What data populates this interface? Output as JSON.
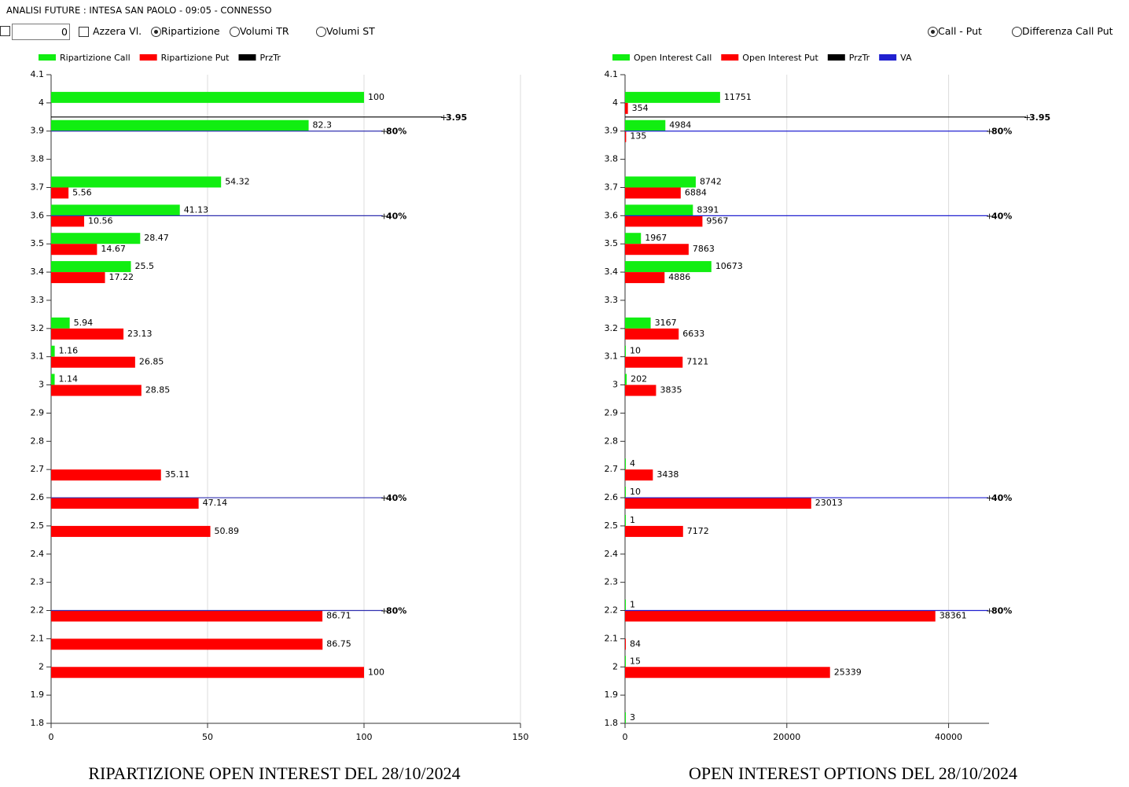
{
  "header": {
    "title": "ANALISI FUTURE : INTESA SAN PAOLO - 09:05 - CONNESSO"
  },
  "controls": {
    "input_value": "0",
    "reset": "Azzera Vl.",
    "left_options": [
      {
        "label": "Ripartizione",
        "checked": true
      },
      {
        "label": "Volumi TR",
        "checked": false
      },
      {
        "label": "Volumi ST",
        "checked": false
      }
    ],
    "right_options": [
      {
        "label": "Call - Put",
        "checked": true
      },
      {
        "label": "Differenza Call Put",
        "checked": false
      }
    ]
  },
  "chart_data": [
    {
      "type": "hbar",
      "title": "RIPARTIZIONE OPEN INTEREST DEL 28/10/2024",
      "y": [
        4,
        3.9,
        3.7,
        3.6,
        3.5,
        3.4,
        3.2,
        3.1,
        3,
        2.7,
        2.6,
        2.5,
        2.2,
        2.1,
        2
      ],
      "series": [
        {
          "name": "Ripartizione Call",
          "color": "#11ee11",
          "values": [
            100,
            82.3,
            54.32,
            41.13,
            28.47,
            25.5,
            5.94,
            1.16,
            1.14,
            null,
            null,
            null,
            null,
            null,
            null
          ]
        },
        {
          "name": "Ripartizione Put",
          "color": "#ff0000",
          "values": [
            null,
            null,
            5.56,
            10.56,
            14.67,
            17.22,
            23.13,
            26.85,
            28.85,
            35.11,
            47.14,
            50.89,
            86.71,
            86.75,
            100
          ]
        }
      ],
      "lines": [
        {
          "name": "PrzTr",
          "color": "#000000",
          "values": [
            3.95
          ]
        },
        {
          "color": "#3030b0",
          "values": [
            3.9,
            3.6,
            2.6,
            2.2
          ],
          "labels": [
            "80%",
            "40%",
            "40%",
            "80%"
          ]
        }
      ],
      "xlim": [
        0,
        150
      ],
      "xticks": [
        0,
        50,
        100,
        150
      ],
      "grid": true,
      "ylim": [
        1.8,
        4.1
      ],
      "yticks": [
        1.8,
        1.9,
        2,
        2.1,
        2.2,
        2.3,
        2.4,
        2.5,
        2.6,
        2.7,
        2.8,
        2.9,
        3,
        3.1,
        3.2,
        3.3,
        3.4,
        3.5,
        3.6,
        3.7,
        3.8,
        3.9,
        4,
        4.1
      ]
    },
    {
      "type": "hbar",
      "title": "OPEN INTEREST OPTIONS DEL 28/10/2024",
      "y": [
        4,
        3.9,
        3.7,
        3.6,
        3.5,
        3.4,
        3.2,
        3.1,
        3,
        2.7,
        2.6,
        2.5,
        2.2,
        2.1,
        2,
        1.8
      ],
      "series": [
        {
          "name": "Open Interest Call",
          "color": "#11ee11",
          "values": [
            11751,
            4984,
            8742,
            8391,
            1967,
            10673,
            3167,
            10,
            202,
            4,
            10,
            1,
            1,
            null,
            15,
            3
          ]
        },
        {
          "name": "Open Interest Put",
          "color": "#ff0000",
          "values": [
            354,
            135,
            6884,
            9567,
            7863,
            4886,
            6633,
            7121,
            3835,
            3438,
            23013,
            7172,
            38361,
            84,
            25339,
            null
          ]
        }
      ],
      "lines": [
        {
          "name": "PrzTr",
          "color": "#000000",
          "values": [
            3.95
          ]
        },
        {
          "name": "VA",
          "color": "#2020d0",
          "values": [
            3.9,
            3.6,
            2.6,
            2.2
          ],
          "labels": [
            "80%",
            "40%",
            "40%",
            "80%"
          ]
        }
      ],
      "xlim": [
        0,
        45000
      ],
      "xticks": [
        0,
        20000,
        40000
      ],
      "grid": true,
      "ylim": [
        1.8,
        4.1
      ],
      "yticks": [
        1.8,
        1.9,
        2,
        2.1,
        2.2,
        2.3,
        2.4,
        2.5,
        2.6,
        2.7,
        2.8,
        2.9,
        3,
        3.1,
        3.2,
        3.3,
        3.4,
        3.5,
        3.6,
        3.7,
        3.8,
        3.9,
        4,
        4.1
      ]
    }
  ]
}
